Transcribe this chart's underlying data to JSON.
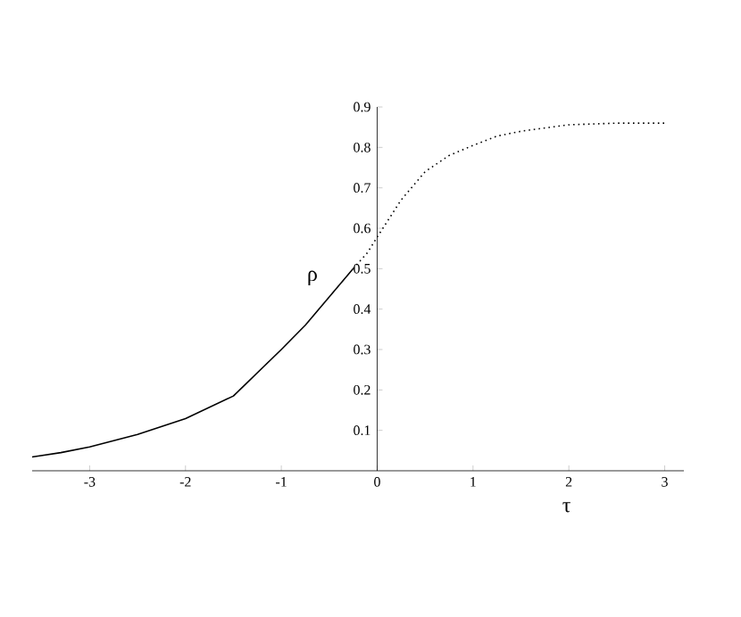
{
  "chart_data": {
    "type": "line",
    "xlabel": "τ",
    "ylabel": "ρ",
    "xlim": [
      -3.6,
      3.2
    ],
    "ylim": [
      0,
      0.9
    ],
    "xticks": [
      -3,
      -2,
      -1,
      0,
      1,
      2,
      3
    ],
    "yticks": [
      0.1,
      0.2,
      0.3,
      0.4,
      0.5,
      0.6,
      0.7,
      0.8,
      0.9
    ],
    "grid": false,
    "marker": "none",
    "series": [
      {
        "color": "#000000",
        "line_style": "solid",
        "x": [
          -3.6,
          -3.3,
          -3,
          -2.5,
          -2,
          -1.5,
          -1,
          -0.75,
          -0.5,
          -0.25
        ],
        "values": [
          0.034,
          0.045,
          0.059,
          0.09,
          0.129,
          0.185,
          0.3,
          0.36,
          0.43,
          0.5
        ]
      },
      {
        "color": "#000000",
        "line_style": "dotted",
        "x": [
          -0.25,
          -0.1,
          0,
          0.25,
          0.5,
          0.75,
          1,
          1.25,
          1.5,
          2,
          2.5,
          3
        ],
        "values": [
          0.5,
          0.54,
          0.578,
          0.67,
          0.74,
          0.78,
          0.805,
          0.828,
          0.84,
          0.856,
          0.86,
          0.86
        ]
      }
    ]
  }
}
